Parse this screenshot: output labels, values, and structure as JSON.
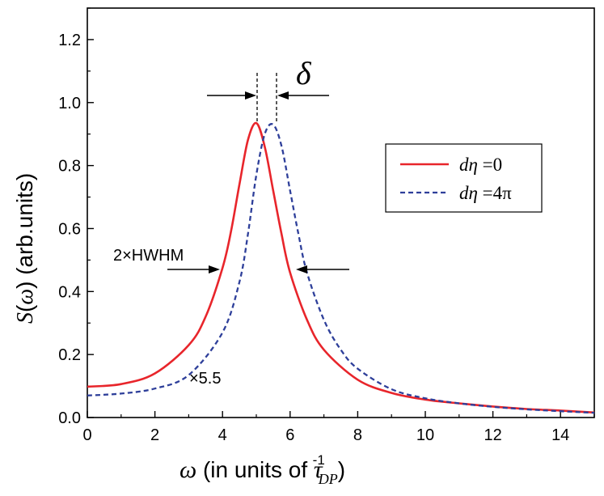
{
  "chart_data": {
    "type": "line",
    "title": "",
    "xlabel": {
      "omega": "ω",
      "text": " (in units of ",
      "tau": "τ",
      "sup": "-1",
      "sub": "DP",
      "close": ")"
    },
    "ylabel": {
      "s": "S",
      "open": "(",
      "omega": "ω",
      "rest": ") (arb.units)"
    },
    "xlim": [
      0,
      15
    ],
    "ylim": [
      0,
      1.3
    ],
    "x_ticks": [
      0,
      2,
      4,
      6,
      8,
      10,
      12,
      14
    ],
    "x_tick_labels": [
      "0",
      "2",
      "4",
      "6",
      "8",
      "10",
      "12",
      "14"
    ],
    "y_ticks": [
      0,
      0.2,
      0.4,
      0.6,
      0.8,
      1.0,
      1.2
    ],
    "y_tick_labels": [
      "0.0",
      "0.2",
      "0.4",
      "0.6",
      "0.8",
      "1.0",
      "1.2"
    ],
    "grid": false,
    "legend_position": "right",
    "series": [
      {
        "name": "dη =0",
        "name_parts": {
          "d": "d",
          "eta": "η",
          "rest": " =0"
        },
        "color": "#e8252b",
        "style": "solid",
        "x": [
          0,
          1,
          2,
          3,
          3.5,
          4,
          4.25,
          4.5,
          4.75,
          5.0,
          5.25,
          5.5,
          5.75,
          6,
          6.5,
          7,
          8,
          9,
          10,
          11,
          12,
          13,
          14,
          15
        ],
        "y": [
          0.098,
          0.106,
          0.14,
          0.23,
          0.32,
          0.475,
          0.59,
          0.74,
          0.88,
          0.935,
          0.86,
          0.72,
          0.58,
          0.46,
          0.31,
          0.215,
          0.12,
          0.078,
          0.057,
          0.045,
          0.035,
          0.027,
          0.022,
          0.016
        ]
      },
      {
        "name": "dη =4π",
        "name_parts": {
          "d": "d",
          "eta": "η",
          "rest": " =4π"
        },
        "color": "#2e3f9a",
        "style": "dashed",
        "x": [
          0,
          1,
          2,
          3,
          4,
          4.5,
          4.75,
          5.0,
          5.25,
          5.5,
          5.75,
          6.0,
          6.25,
          6.5,
          7,
          7.5,
          8,
          9,
          10,
          11,
          12,
          13,
          14,
          15
        ],
        "y": [
          0.07,
          0.076,
          0.092,
          0.135,
          0.27,
          0.43,
          0.58,
          0.77,
          0.9,
          0.93,
          0.86,
          0.72,
          0.58,
          0.46,
          0.31,
          0.215,
          0.155,
          0.09,
          0.061,
          0.045,
          0.034,
          0.026,
          0.02,
          0.015
        ]
      }
    ],
    "annotations": {
      "delta": "δ",
      "hwhm": "2×HWHM",
      "scale": "×5.5"
    }
  }
}
